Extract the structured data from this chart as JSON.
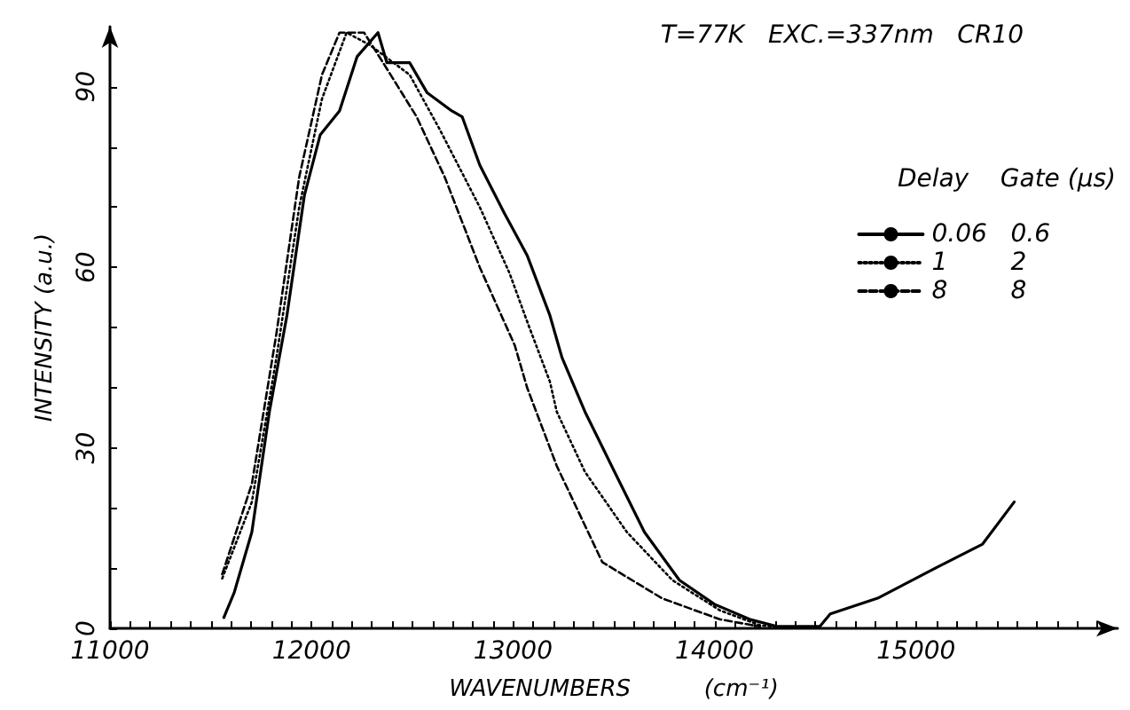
{
  "chart_data": {
    "type": "line",
    "title": "T=77K   EXC.=337nm   CR10",
    "xlabel": "WAVENUMBERS          (cm⁻¹)",
    "ylabel": "INTENSITY (a.u.)",
    "legend_title": "Delay    Gate (μs)",
    "legend": "right",
    "grid": false,
    "marker": "none",
    "xlim": [
      11000,
      16000
    ],
    "ylim": [
      0,
      100
    ],
    "xticks": [
      11000,
      {
        "value": 11100,
        "label": null
      },
      {
        "value": 11200,
        "label": null
      },
      {
        "value": 11300,
        "label": null
      },
      {
        "value": 11400,
        "label": null
      },
      {
        "value": 11500,
        "label": null
      },
      {
        "value": 11600,
        "label": null
      },
      {
        "value": 11700,
        "label": null
      },
      {
        "value": 11800,
        "label": null
      },
      {
        "value": 11900,
        "label": null
      },
      12000,
      {
        "value": 12100,
        "label": null
      },
      {
        "value": 12200,
        "label": null
      },
      {
        "value": 12300,
        "label": null
      },
      {
        "value": 12400,
        "label": null
      },
      {
        "value": 12500,
        "label": null
      },
      {
        "value": 12600,
        "label": null
      },
      {
        "value": 12700,
        "label": null
      },
      {
        "value": 12800,
        "label": null
      },
      {
        "value": 12900,
        "label": null
      },
      13000,
      {
        "value": 13100,
        "label": null
      },
      {
        "value": 13200,
        "label": null
      },
      {
        "value": 13300,
        "label": null
      },
      {
        "value": 13400,
        "label": null
      },
      {
        "value": 13500,
        "label": null
      },
      {
        "value": 13600,
        "label": null
      },
      {
        "value": 13700,
        "label": null
      },
      {
        "value": 13800,
        "label": null
      },
      {
        "value": 13900,
        "label": null
      },
      14000,
      {
        "value": 14100,
        "label": null
      },
      {
        "value": 14200,
        "label": null
      },
      {
        "value": 14300,
        "label": null
      },
      {
        "value": 14400,
        "label": null
      },
      {
        "value": 14500,
        "label": null
      },
      {
        "value": 14600,
        "label": null
      },
      {
        "value": 14700,
        "label": null
      },
      {
        "value": 14800,
        "label": null
      },
      {
        "value": 14900,
        "label": null
      },
      15000,
      {
        "value": 15100,
        "label": null
      },
      {
        "value": 15200,
        "label": null
      },
      {
        "value": 15300,
        "label": null
      },
      {
        "value": 15400,
        "label": null
      },
      {
        "value": 15500,
        "label": null
      },
      {
        "value": 15600,
        "label": null
      },
      {
        "value": 15700,
        "label": null
      },
      {
        "value": 15800,
        "label": null
      },
      {
        "value": 15900,
        "label": null
      }
    ],
    "yticks": [
      0,
      {
        "value": 10,
        "label": null
      },
      {
        "value": 20,
        "label": null
      },
      30,
      {
        "value": 40,
        "label": null
      },
      {
        "value": 50,
        "label": null
      },
      60,
      {
        "value": 70,
        "label": null
      },
      {
        "value": 80,
        "label": null
      },
      90
    ],
    "series": [
      {
        "name": "0.06   0.6",
        "color": "#000000",
        "line_style": "solid",
        "x": [
          11565,
          11617,
          11704,
          11791,
          11878,
          11965,
          12043,
          12139,
          12226,
          12330,
          12374,
          12487,
          12574,
          12696,
          12748,
          12835,
          12957,
          13070,
          13183,
          13243,
          13357,
          13504,
          13652,
          13826,
          14000,
          14174,
          14313,
          14522,
          14574,
          14809,
          15096,
          15330,
          15487
        ],
        "values": [
          1.8,
          6,
          16,
          36,
          52,
          72,
          82,
          86,
          95,
          99,
          94,
          94,
          89,
          86,
          85,
          77,
          69,
          62,
          52,
          45,
          36,
          26,
          16,
          8,
          4,
          1.5,
          0.3,
          0.3,
          2.4,
          5,
          10,
          14,
          21
        ]
      },
      {
        "name": "1        2",
        "color": "#000000",
        "line_style": "dotted",
        "x": [
          11557,
          11704,
          11826,
          11939,
          12052,
          12174,
          12287,
          12487,
          12635,
          12835,
          12983,
          13070,
          13183,
          13217,
          13357,
          13565,
          13791,
          14026,
          14226,
          14374
        ],
        "values": [
          8.3,
          21,
          45,
          70,
          88,
          99,
          97,
          92,
          83,
          70,
          59,
          51,
          41,
          36,
          26,
          16,
          8,
          3,
          0.5,
          0
        ]
      },
      {
        "name": "8        8",
        "color": "#000000",
        "line_style": "dashed",
        "x": [
          11557,
          11704,
          11826,
          11939,
          12052,
          12139,
          12261,
          12374,
          12522,
          12661,
          12835,
          13009,
          13070,
          13217,
          13443,
          13739,
          14026,
          14226
        ],
        "values": [
          9,
          24,
          49,
          75,
          92,
          99,
          99,
          93,
          85,
          75,
          60,
          47,
          40,
          27,
          11,
          5,
          1.5,
          0.3
        ]
      }
    ]
  }
}
